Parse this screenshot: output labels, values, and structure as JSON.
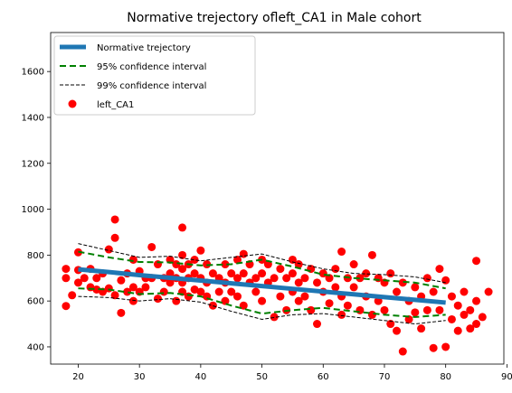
{
  "chart_data": {
    "type": "scatter",
    "title": "Normative trejectory ofleft_CA1 in Male cohort",
    "xlabel": "",
    "ylabel": "",
    "xlim": [
      15.5,
      89.5
    ],
    "ylim": [
      325,
      1770
    ],
    "x_ticks": [
      20,
      30,
      40,
      50,
      60,
      70,
      80,
      90
    ],
    "y_ticks": [
      400,
      600,
      800,
      1000,
      1200,
      1400,
      1600
    ],
    "grid": false,
    "legend_position": "top-left",
    "legend": [
      {
        "label": "Normative trejectory",
        "style": "line",
        "color": "#1f77b4"
      },
      {
        "label": "95% confidence interval",
        "style": "dashed",
        "color": "#008000"
      },
      {
        "label": "99% confidence interval",
        "style": "dashed",
        "color": "#000000"
      },
      {
        "label": "left_CA1",
        "style": "marker",
        "color": "#ff0000"
      }
    ],
    "series": [
      {
        "name": "Normative trejectory",
        "kind": "line",
        "color": "#1f77b4",
        "x": [
          20,
          25,
          30,
          35,
          40,
          45,
          50,
          55,
          60,
          65,
          70,
          75,
          80
        ],
        "y": [
          738,
          726,
          713,
          701,
          689,
          677,
          665,
          653,
          641,
          629,
          617,
          605,
          593
        ]
      },
      {
        "name": "95% confidence interval (upper)",
        "kind": "dashed",
        "color": "#008000",
        "x": [
          20,
          25,
          30,
          35,
          40,
          45,
          50,
          55,
          60,
          65,
          70,
          75,
          80
        ],
        "y": [
          815,
          790,
          770,
          768,
          755,
          760,
          780,
          750,
          715,
          700,
          690,
          680,
          655
        ]
      },
      {
        "name": "95% confidence interval (lower)",
        "kind": "dashed",
        "color": "#008000",
        "x": [
          20,
          25,
          30,
          35,
          40,
          45,
          50,
          55,
          60,
          65,
          70,
          75,
          80
        ],
        "y": [
          655,
          650,
          630,
          635,
          620,
          580,
          545,
          560,
          570,
          555,
          540,
          530,
          540
        ]
      },
      {
        "name": "99% confidence interval (upper)",
        "kind": "dashed",
        "color": "#000000",
        "x": [
          20,
          25,
          30,
          35,
          40,
          45,
          50,
          55,
          60,
          65,
          70,
          75,
          80
        ],
        "y": [
          850,
          820,
          790,
          795,
          775,
          790,
          805,
          770,
          740,
          720,
          715,
          705,
          680
        ]
      },
      {
        "name": "99% confidence interval (lower)",
        "kind": "dashed",
        "color": "#000000",
        "x": [
          20,
          25,
          30,
          35,
          40,
          45,
          50,
          55,
          60,
          65,
          70,
          75,
          80
        ],
        "y": [
          620,
          615,
          600,
          610,
          595,
          555,
          520,
          540,
          545,
          530,
          515,
          500,
          515
        ]
      },
      {
        "name": "left_CA1",
        "kind": "scatter",
        "color": "#ff0000",
        "points": [
          [
            18,
            578
          ],
          [
            18,
            740
          ],
          [
            18,
            700
          ],
          [
            19,
            625
          ],
          [
            20,
            812
          ],
          [
            20,
            680
          ],
          [
            20,
            735
          ],
          [
            21,
            700
          ],
          [
            22,
            660
          ],
          [
            22,
            740
          ],
          [
            23,
            650
          ],
          [
            23,
            700
          ],
          [
            24,
            720
          ],
          [
            24,
            640
          ],
          [
            25,
            825
          ],
          [
            25,
            655
          ],
          [
            26,
            955
          ],
          [
            26,
            875
          ],
          [
            26,
            625
          ],
          [
            27,
            548
          ],
          [
            27,
            690
          ],
          [
            28,
            720
          ],
          [
            28,
            640
          ],
          [
            29,
            780
          ],
          [
            29,
            600
          ],
          [
            29,
            660
          ],
          [
            30,
            730
          ],
          [
            30,
            640
          ],
          [
            31,
            700
          ],
          [
            31,
            660
          ],
          [
            32,
            835
          ],
          [
            32,
            700
          ],
          [
            33,
            610
          ],
          [
            33,
            760
          ],
          [
            34,
            640
          ],
          [
            34,
            700
          ],
          [
            35,
            780
          ],
          [
            35,
            720
          ],
          [
            35,
            680
          ],
          [
            36,
            600
          ],
          [
            36,
            760
          ],
          [
            36,
            700
          ],
          [
            37,
            920
          ],
          [
            37,
            800
          ],
          [
            37,
            740
          ],
          [
            37,
            680
          ],
          [
            37,
            640
          ],
          [
            38,
            760
          ],
          [
            38,
            700
          ],
          [
            38,
            620
          ],
          [
            39,
            780
          ],
          [
            39,
            720
          ],
          [
            39,
            650
          ],
          [
            40,
            820
          ],
          [
            40,
            700
          ],
          [
            40,
            640
          ],
          [
            41,
            760
          ],
          [
            41,
            680
          ],
          [
            41,
            620
          ],
          [
            42,
            580
          ],
          [
            42,
            720
          ],
          [
            43,
            700
          ],
          [
            43,
            640
          ],
          [
            44,
            760
          ],
          [
            44,
            680
          ],
          [
            44,
            600
          ],
          [
            45,
            720
          ],
          [
            45,
            640
          ],
          [
            46,
            780
          ],
          [
            46,
            700
          ],
          [
            46,
            620
          ],
          [
            47,
            805
          ],
          [
            47,
            720
          ],
          [
            47,
            580
          ],
          [
            48,
            760
          ],
          [
            48,
            680
          ],
          [
            49,
            700
          ],
          [
            49,
            640
          ],
          [
            50,
            780
          ],
          [
            50,
            720
          ],
          [
            50,
            600
          ],
          [
            51,
            760
          ],
          [
            51,
            680
          ],
          [
            52,
            700
          ],
          [
            52,
            530
          ],
          [
            53,
            740
          ],
          [
            53,
            620
          ],
          [
            54,
            700
          ],
          [
            54,
            560
          ],
          [
            55,
            780
          ],
          [
            55,
            720
          ],
          [
            55,
            640
          ],
          [
            56,
            760
          ],
          [
            56,
            680
          ],
          [
            56,
            600
          ],
          [
            57,
            700
          ],
          [
            57,
            620
          ],
          [
            58,
            740
          ],
          [
            58,
            560
          ],
          [
            59,
            680
          ],
          [
            59,
            500
          ],
          [
            60,
            720
          ],
          [
            60,
            640
          ],
          [
            61,
            700
          ],
          [
            61,
            590
          ],
          [
            62,
            740
          ],
          [
            62,
            660
          ],
          [
            63,
            815
          ],
          [
            63,
            620
          ],
          [
            63,
            540
          ],
          [
            64,
            700
          ],
          [
            64,
            580
          ],
          [
            65,
            760
          ],
          [
            65,
            660
          ],
          [
            66,
            700
          ],
          [
            66,
            560
          ],
          [
            67,
            720
          ],
          [
            67,
            620
          ],
          [
            68,
            800
          ],
          [
            68,
            540
          ],
          [
            69,
            700
          ],
          [
            69,
            600
          ],
          [
            70,
            680
          ],
          [
            70,
            560
          ],
          [
            71,
            720
          ],
          [
            71,
            500
          ],
          [
            72,
            640
          ],
          [
            72,
            470
          ],
          [
            73,
            380
          ],
          [
            73,
            680
          ],
          [
            74,
            600
          ],
          [
            74,
            520
          ],
          [
            75,
            660
          ],
          [
            75,
            550
          ],
          [
            76,
            620
          ],
          [
            76,
            480
          ],
          [
            77,
            700
          ],
          [
            77,
            560
          ],
          [
            78,
            395
          ],
          [
            78,
            640
          ],
          [
            79,
            740
          ],
          [
            79,
            560
          ],
          [
            80,
            690
          ],
          [
            80,
            400
          ],
          [
            81,
            620
          ],
          [
            81,
            520
          ],
          [
            82,
            580
          ],
          [
            82,
            470
          ],
          [
            83,
            640
          ],
          [
            83,
            540
          ],
          [
            84,
            560
          ],
          [
            84,
            480
          ],
          [
            85,
            775
          ],
          [
            85,
            600
          ],
          [
            85,
            500
          ],
          [
            86,
            530
          ],
          [
            87,
            640
          ]
        ]
      }
    ]
  }
}
